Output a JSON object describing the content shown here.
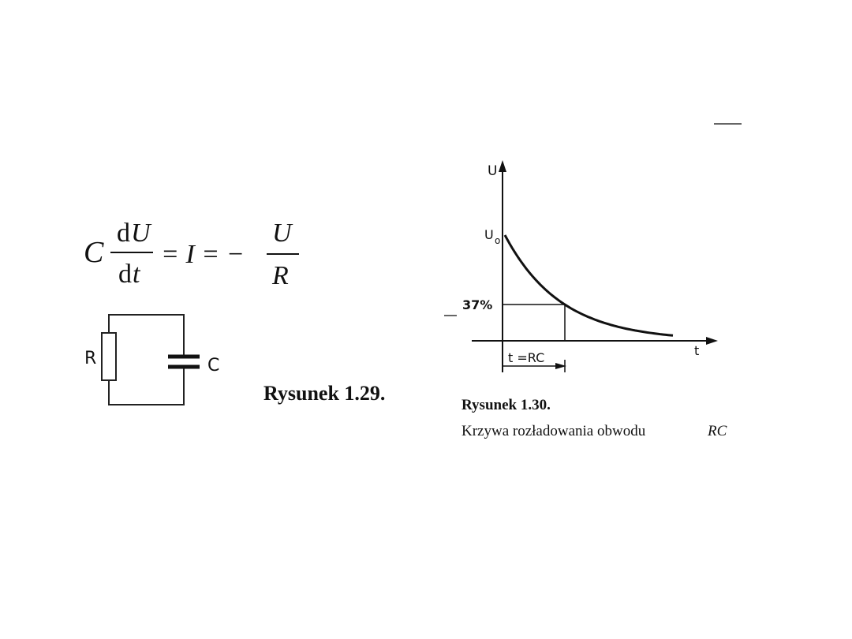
{
  "equation": {
    "c": "C",
    "d_num": "d",
    "u_num": "U",
    "dt_d": "d",
    "dt_t": "t",
    "equals": "= I = −",
    "u_frac": "U",
    "r_frac": "R"
  },
  "figure_1_29": {
    "resistor_label": "R",
    "capacitor_label": "C",
    "caption": "Rysunek 1.29."
  },
  "figure_1_30": {
    "y_axis_label": "U",
    "u0_main": "U",
    "u0_sub": "o",
    "level_label": "37%",
    "x_axis_label": "t",
    "time_constant_label": "t =RC",
    "caption_title": "Rysunek 1.30.",
    "caption_text": "Krzywa rozładowania obwodu",
    "caption_italic": "RC"
  }
}
